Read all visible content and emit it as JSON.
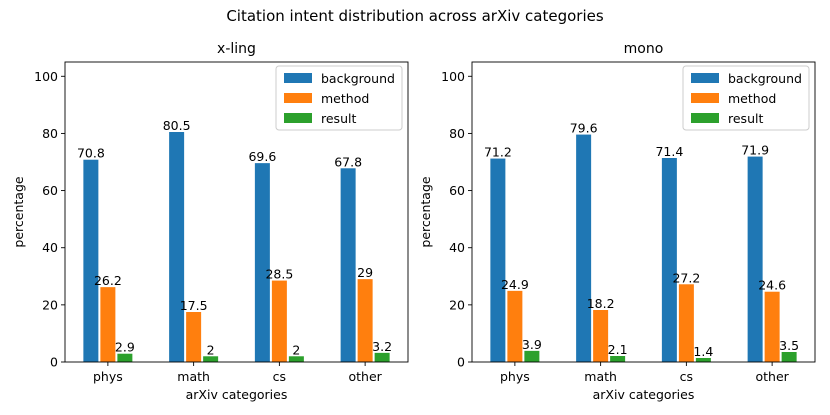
{
  "figure": {
    "suptitle": "Citation intent distribution across arXiv categories"
  },
  "colors": {
    "background": "#1f77b4",
    "method": "#ff7f0e",
    "result": "#2ca02c"
  },
  "chart_data": [
    {
      "type": "bar",
      "title": "x-ling",
      "xlabel": "arXiv categories",
      "ylabel": "percentage",
      "categories": [
        "phys",
        "math",
        "cs",
        "other"
      ],
      "ylim": [
        0,
        105
      ],
      "yticks": [
        0,
        20,
        40,
        60,
        80,
        100
      ],
      "legend_position": "top-right",
      "grid": false,
      "series": [
        {
          "name": "background",
          "values": [
            70.8,
            80.5,
            69.6,
            67.8
          ]
        },
        {
          "name": "method",
          "values": [
            26.2,
            17.5,
            28.5,
            29
          ]
        },
        {
          "name": "result",
          "values": [
            2.9,
            2,
            2,
            3.2
          ]
        }
      ]
    },
    {
      "type": "bar",
      "title": "mono",
      "xlabel": "arXiv categories",
      "ylabel": "percentage",
      "categories": [
        "phys",
        "math",
        "cs",
        "other"
      ],
      "ylim": [
        0,
        105
      ],
      "yticks": [
        0,
        20,
        40,
        60,
        80,
        100
      ],
      "legend_position": "top-right",
      "grid": false,
      "series": [
        {
          "name": "background",
          "values": [
            71.2,
            79.6,
            71.4,
            71.9
          ]
        },
        {
          "name": "method",
          "values": [
            24.9,
            18.2,
            27.2,
            24.6
          ]
        },
        {
          "name": "result",
          "values": [
            3.9,
            2.1,
            1.4,
            3.5
          ]
        }
      ]
    }
  ]
}
